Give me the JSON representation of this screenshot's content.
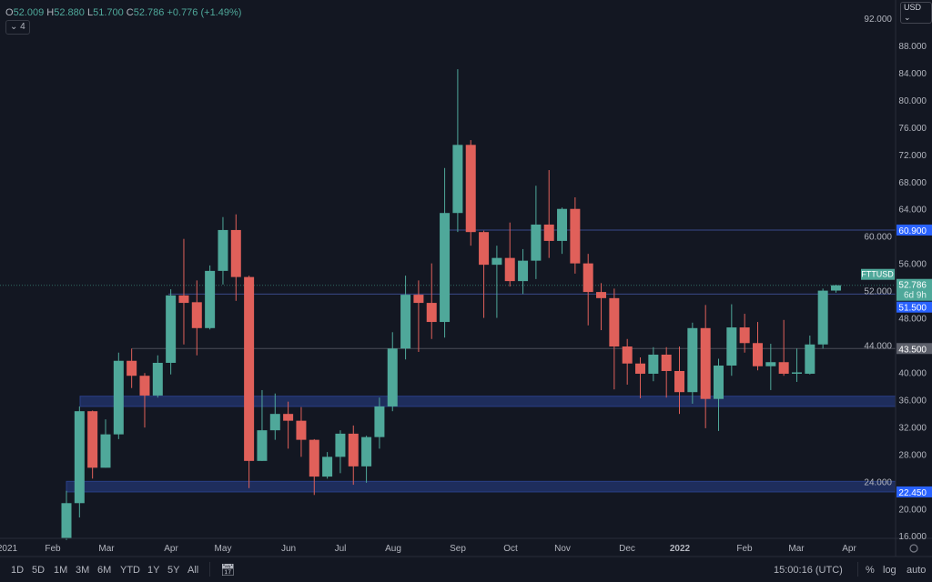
{
  "legend": {
    "o_label": "O",
    "o": "52.009",
    "h_label": "H",
    "h": "52.880",
    "l_label": "L",
    "l": "51.700",
    "c_label": "C",
    "c": "52.786",
    "change": "+0.776 (+1.49%)",
    "collapse_count": "4"
  },
  "currency_selector": "USD",
  "symbol_label": "FTTUSD",
  "countdown": "6d 9h",
  "colors": {
    "background": "#131722",
    "up": "#4fa89a",
    "down": "#e0605a",
    "zone": "#1e2d5c",
    "level_label": "#2962ff",
    "grid_text": "#b2b5be"
  },
  "bottom_toolbar": {
    "ranges": [
      "1D",
      "5D",
      "1M",
      "3M",
      "6M",
      "YTD",
      "1Y",
      "5Y",
      "All"
    ],
    "time": "15:00:16 (UTC)",
    "percent": "%",
    "log": "log",
    "auto": "auto",
    "date_range_icon": "calendar-goto-icon",
    "settings_icon": "gear-icon"
  },
  "chart_data": {
    "type": "candlestick",
    "interval": "weekly",
    "ylim": [
      14,
      94
    ],
    "y_scale": "linear",
    "y_ticks": [
      "92.000",
      "88.000",
      "84.000",
      "80.000",
      "76.000",
      "72.000",
      "68.000",
      "64.000",
      "60.000",
      "56.000",
      "52.000",
      "48.000",
      "44.000",
      "40.000",
      "36.000",
      "32.000",
      "28.000",
      "24.000",
      "20.000",
      "16.000"
    ],
    "x_ticks": [
      "2021",
      "Feb",
      "Mar",
      "Apr",
      "May",
      "Jun",
      "Jul",
      "Aug",
      "Sep",
      "Oct",
      "Nov",
      "Dec",
      "2022",
      "Feb",
      "Mar",
      "Apr"
    ],
    "last_price": "52.786",
    "levels": [
      {
        "value": 60.9,
        "label": "60.900",
        "color": "#2962ff"
      },
      {
        "value": 51.5,
        "label": "51.500",
        "color": "#2962ff"
      },
      {
        "value": 43.5,
        "label": "43.500",
        "color": "#5d606b"
      }
    ],
    "zones": [
      {
        "from": 35.0,
        "to": 36.5
      },
      {
        "from": 22.45,
        "to": 24.0,
        "label": "22.450"
      }
    ],
    "candles": [
      {
        "o": 15.6,
        "h": 22.6,
        "l": 15.4,
        "c": 20.8
      },
      {
        "o": 20.8,
        "h": 35.0,
        "l": 18.7,
        "c": 34.3
      },
      {
        "o": 34.3,
        "h": 34.4,
        "l": 24.4,
        "c": 26.0
      },
      {
        "o": 26.0,
        "h": 33.1,
        "l": 26.0,
        "c": 30.9
      },
      {
        "o": 30.9,
        "h": 42.9,
        "l": 30.2,
        "c": 41.7
      },
      {
        "o": 41.7,
        "h": 43.5,
        "l": 37.7,
        "c": 39.5
      },
      {
        "o": 39.5,
        "h": 39.9,
        "l": 31.9,
        "c": 36.6
      },
      {
        "o": 36.6,
        "h": 42.5,
        "l": 36.3,
        "c": 41.4
      },
      {
        "o": 41.4,
        "h": 52.2,
        "l": 39.7,
        "c": 51.3
      },
      {
        "o": 51.3,
        "h": 59.6,
        "l": 44.1,
        "c": 50.2
      },
      {
        "o": 50.3,
        "h": 53.5,
        "l": 42.5,
        "c": 46.5
      },
      {
        "o": 46.5,
        "h": 55.7,
        "l": 46.3,
        "c": 54.9
      },
      {
        "o": 54.9,
        "h": 62.8,
        "l": 52.9,
        "c": 60.9
      },
      {
        "o": 60.9,
        "h": 63.2,
        "l": 50.5,
        "c": 54.0
      },
      {
        "o": 54.0,
        "h": 54.2,
        "l": 23.0,
        "c": 27.0
      },
      {
        "o": 27.0,
        "h": 37.4,
        "l": 27.0,
        "c": 31.5
      },
      {
        "o": 31.5,
        "h": 36.9,
        "l": 30.1,
        "c": 33.9
      },
      {
        "o": 33.9,
        "h": 35.7,
        "l": 28.8,
        "c": 32.9
      },
      {
        "o": 32.9,
        "h": 34.9,
        "l": 27.6,
        "c": 30.1
      },
      {
        "o": 30.1,
        "h": 30.2,
        "l": 22.0,
        "c": 24.7
      },
      {
        "o": 24.7,
        "h": 28.3,
        "l": 24.4,
        "c": 27.6
      },
      {
        "o": 27.6,
        "h": 31.5,
        "l": 25.2,
        "c": 31.0
      },
      {
        "o": 31.0,
        "h": 32.2,
        "l": 23.5,
        "c": 26.2
      },
      {
        "o": 26.2,
        "h": 30.7,
        "l": 23.8,
        "c": 30.5
      },
      {
        "o": 30.5,
        "h": 36.3,
        "l": 28.8,
        "c": 35.0
      },
      {
        "o": 35.0,
        "h": 45.9,
        "l": 34.3,
        "c": 43.5
      },
      {
        "o": 43.5,
        "h": 54.2,
        "l": 41.9,
        "c": 51.4
      },
      {
        "o": 51.4,
        "h": 53.5,
        "l": 43.0,
        "c": 50.2
      },
      {
        "o": 50.2,
        "h": 56.0,
        "l": 44.9,
        "c": 47.4
      },
      {
        "o": 47.4,
        "h": 70.0,
        "l": 45.1,
        "c": 63.4
      },
      {
        "o": 63.4,
        "h": 84.5,
        "l": 60.6,
        "c": 73.4
      },
      {
        "o": 73.4,
        "h": 74.1,
        "l": 58.6,
        "c": 60.6
      },
      {
        "o": 60.6,
        "h": 60.8,
        "l": 48.0,
        "c": 55.8
      },
      {
        "o": 55.8,
        "h": 58.6,
        "l": 48.0,
        "c": 56.8
      },
      {
        "o": 56.8,
        "h": 62.0,
        "l": 52.6,
        "c": 53.4
      },
      {
        "o": 53.4,
        "h": 58.1,
        "l": 51.5,
        "c": 56.4
      },
      {
        "o": 56.4,
        "h": 67.4,
        "l": 53.7,
        "c": 61.7
      },
      {
        "o": 61.7,
        "h": 69.7,
        "l": 56.8,
        "c": 59.3
      },
      {
        "o": 59.3,
        "h": 64.2,
        "l": 57.4,
        "c": 64.0
      },
      {
        "o": 64.0,
        "h": 65.7,
        "l": 54.5,
        "c": 56.0
      },
      {
        "o": 56.0,
        "h": 57.4,
        "l": 46.9,
        "c": 51.8
      },
      {
        "o": 51.8,
        "h": 53.1,
        "l": 46.2,
        "c": 50.9
      },
      {
        "o": 50.9,
        "h": 52.3,
        "l": 37.5,
        "c": 43.8
      },
      {
        "o": 43.8,
        "h": 44.9,
        "l": 38.2,
        "c": 41.3
      },
      {
        "o": 41.3,
        "h": 42.2,
        "l": 36.2,
        "c": 39.8
      },
      {
        "o": 39.8,
        "h": 43.7,
        "l": 38.7,
        "c": 42.6
      },
      {
        "o": 42.6,
        "h": 43.7,
        "l": 36.3,
        "c": 40.2
      },
      {
        "o": 40.2,
        "h": 43.8,
        "l": 33.9,
        "c": 37.1
      },
      {
        "o": 37.1,
        "h": 47.3,
        "l": 35.4,
        "c": 46.5
      },
      {
        "o": 46.5,
        "h": 49.9,
        "l": 31.8,
        "c": 36.1
      },
      {
        "o": 36.1,
        "h": 42.0,
        "l": 31.4,
        "c": 41.0
      },
      {
        "o": 41.0,
        "h": 50.0,
        "l": 39.5,
        "c": 46.6
      },
      {
        "o": 46.6,
        "h": 48.6,
        "l": 42.9,
        "c": 44.3
      },
      {
        "o": 44.3,
        "h": 47.4,
        "l": 40.3,
        "c": 40.9
      },
      {
        "o": 40.9,
        "h": 44.2,
        "l": 37.4,
        "c": 41.5
      },
      {
        "o": 41.5,
        "h": 47.7,
        "l": 39.5,
        "c": 39.8
      },
      {
        "o": 39.9,
        "h": 43.5,
        "l": 38.6,
        "c": 40.0
      },
      {
        "o": 39.8,
        "h": 45.4,
        "l": 39.7,
        "c": 44.1
      },
      {
        "o": 44.1,
        "h": 52.3,
        "l": 43.5,
        "c": 52.0
      },
      {
        "o": 52.009,
        "h": 52.88,
        "l": 51.7,
        "c": 52.786
      }
    ]
  }
}
